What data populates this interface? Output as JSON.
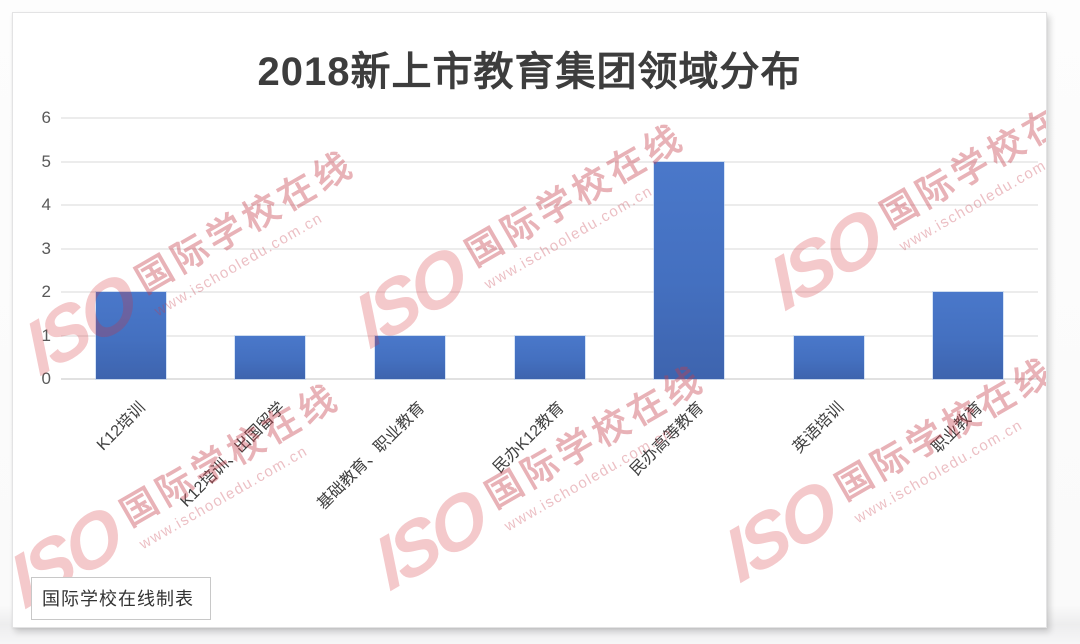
{
  "title": "2018新上市教育集团领域分布",
  "chart_data": {
    "type": "bar",
    "title": "2018新上市教育集团领域分布",
    "categories": [
      "K12培训",
      "K12培训、出国留学",
      "基础教育、职业教育",
      "民办K12教育",
      "民办高等教育",
      "英语培训",
      "职业教育"
    ],
    "values": [
      2,
      1,
      1,
      1,
      5,
      1,
      2
    ],
    "xlabel": "",
    "ylabel": "",
    "ylim": [
      0,
      6
    ],
    "yticks": [
      "0",
      "1",
      "2",
      "3",
      "4",
      "5",
      "6"
    ],
    "grid": true,
    "legend": false,
    "bar_color": "#4470C0",
    "x_label_rotation_deg": 45
  },
  "watermark": {
    "logo_text": "ISO",
    "brand_text": "国际学校在线",
    "url_text": "www.ischooledu.com.cn",
    "color": "#e0505c"
  },
  "footer": {
    "credit_label": "国际学校在线制表"
  }
}
